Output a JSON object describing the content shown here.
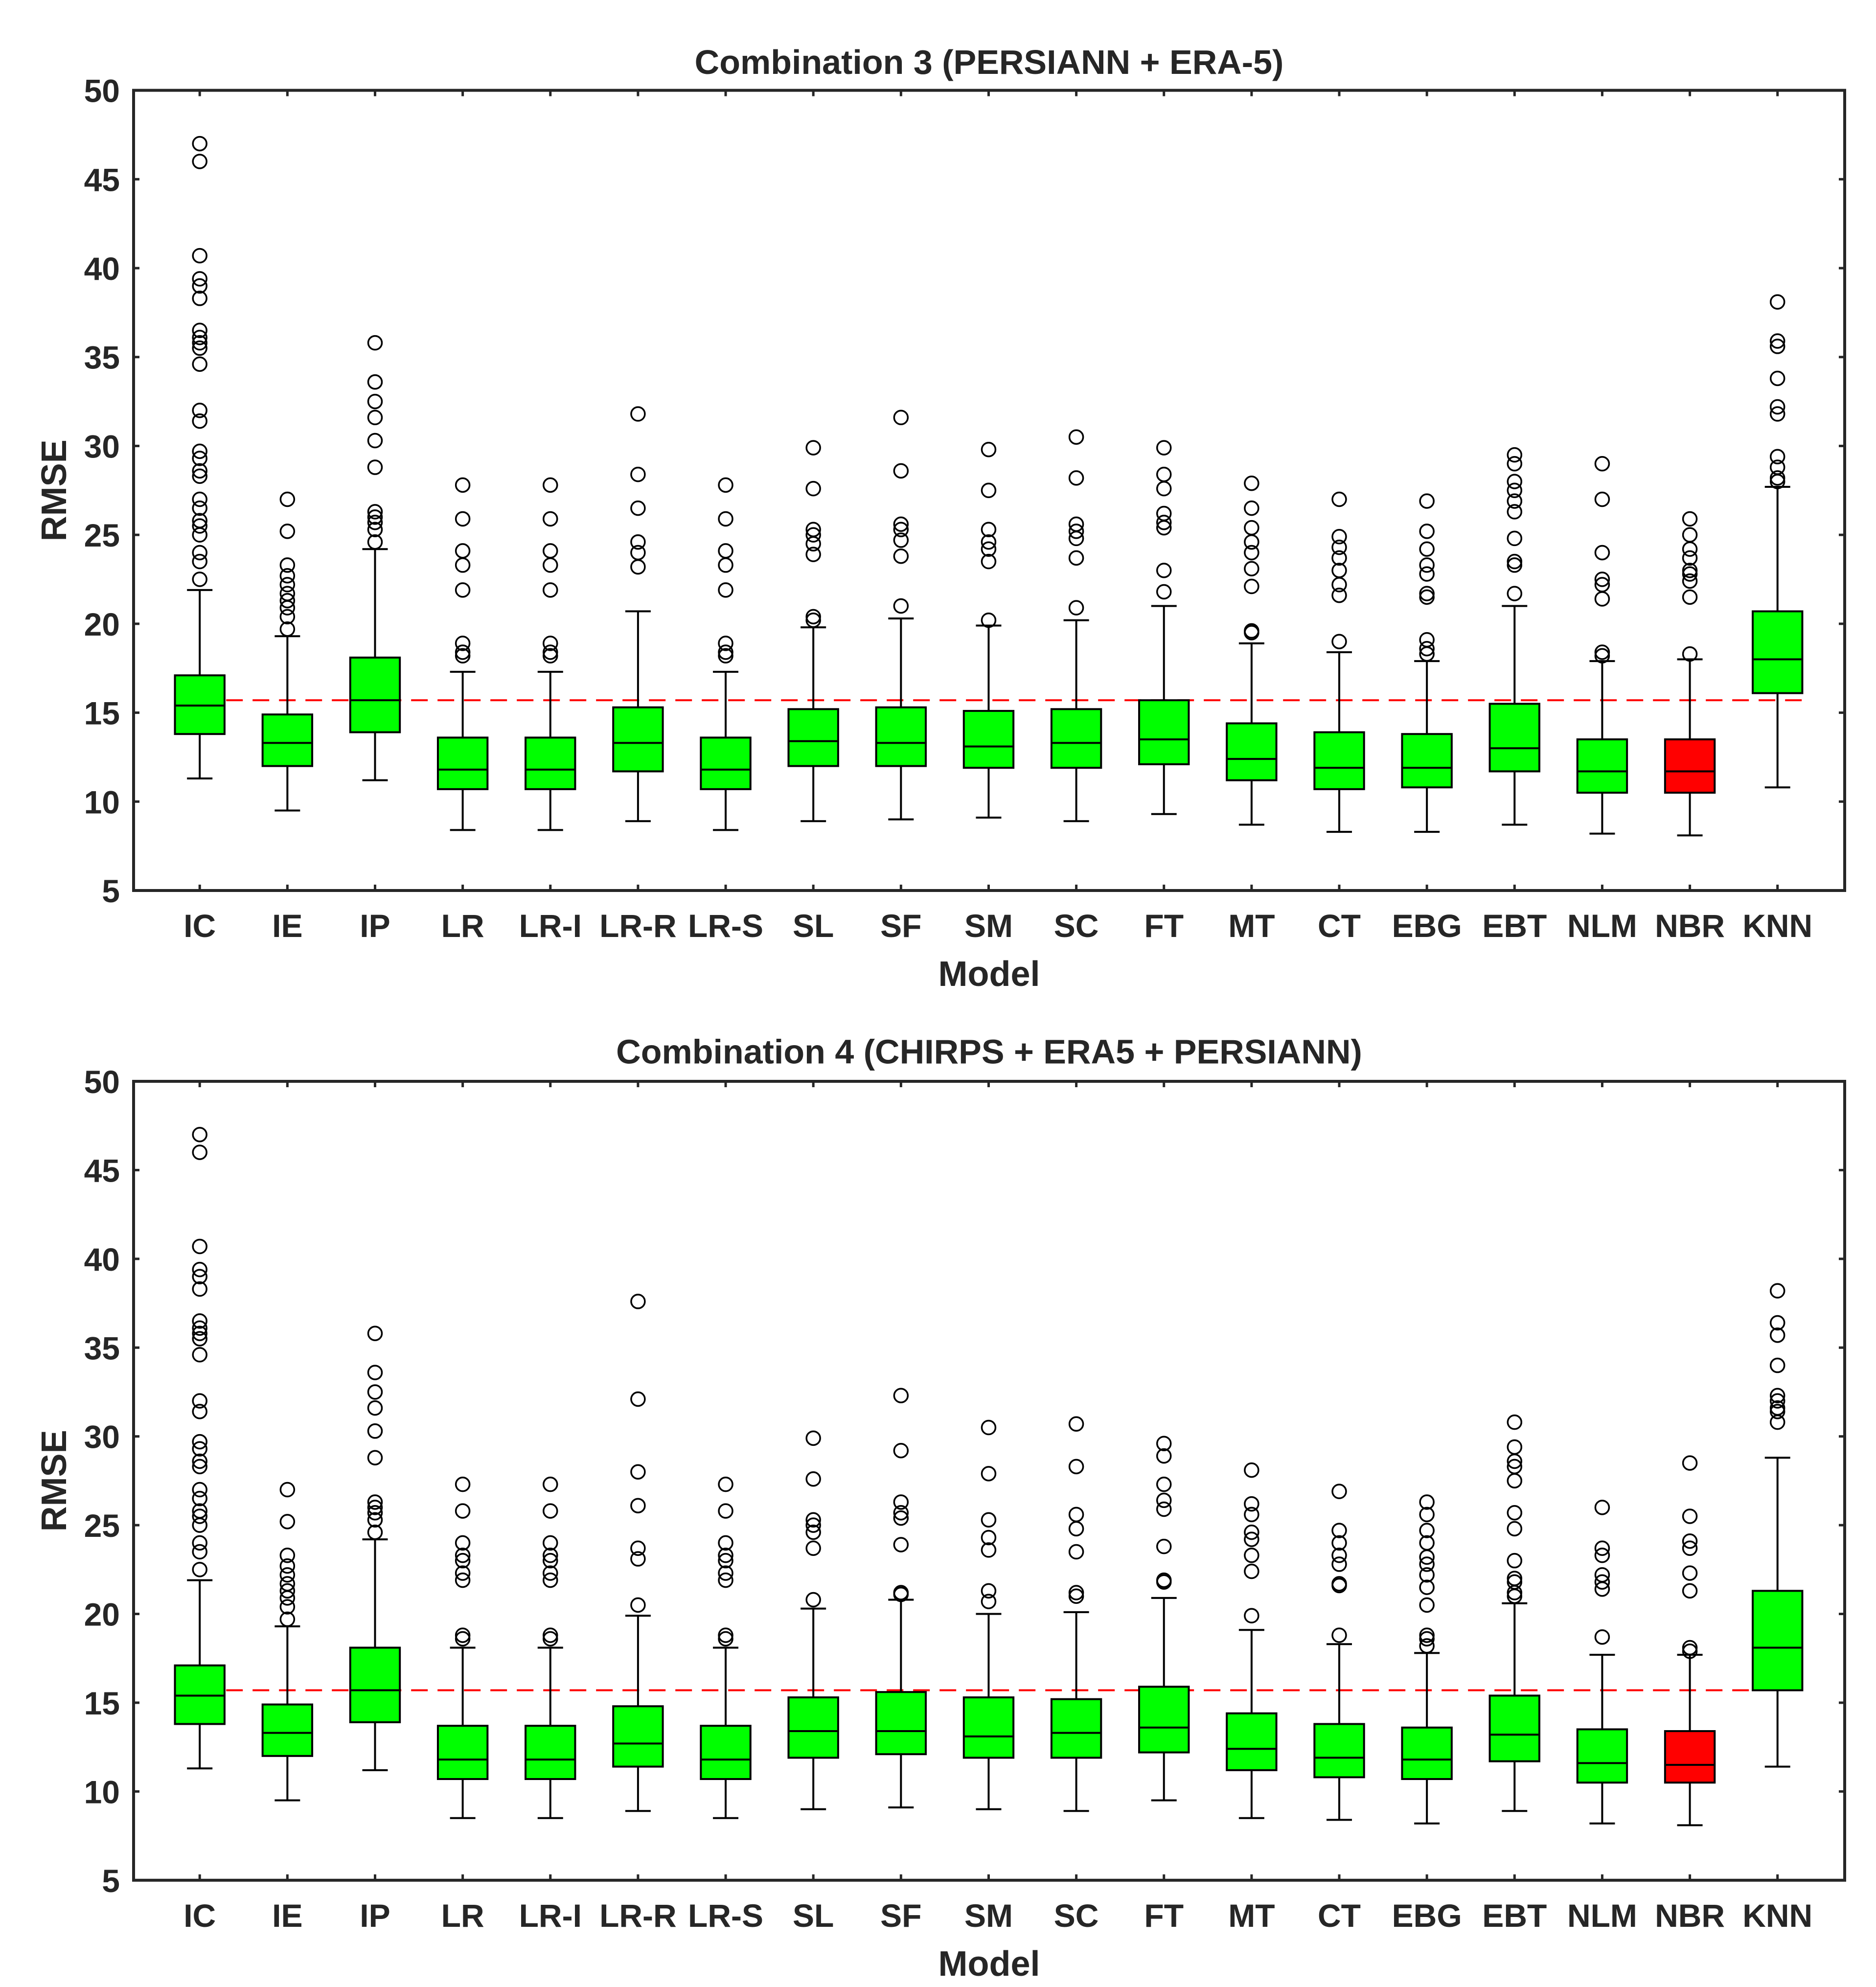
{
  "chart_data": [
    {
      "type": "boxplot",
      "title": "Combination 3 (PERSIANN + ERA-5)",
      "xlabel": "Model",
      "ylabel": "RMSE",
      "ylim": [
        5,
        50
      ],
      "yticks": [
        5,
        10,
        15,
        20,
        25,
        30,
        35,
        40,
        45,
        50
      ],
      "reference_line": 15.7,
      "categories": [
        "IC",
        "IE",
        "IP",
        "LR",
        "LR-I",
        "LR-R",
        "LR-S",
        "SL",
        "SF",
        "SM",
        "SC",
        "FT",
        "MT",
        "CT",
        "EBG",
        "EBT",
        "NLM",
        "NBR",
        "KNN"
      ],
      "box_colors": [
        "#00ff00",
        "#00ff00",
        "#00ff00",
        "#00ff00",
        "#00ff00",
        "#00ff00",
        "#00ff00",
        "#00ff00",
        "#00ff00",
        "#00ff00",
        "#00ff00",
        "#00ff00",
        "#00ff00",
        "#00ff00",
        "#00ff00",
        "#00ff00",
        "#00ff00",
        "#ff0000",
        "#00ff00"
      ],
      "boxes": [
        {
          "wlo": 11.3,
          "q1": 13.8,
          "med": 15.4,
          "q3": 17.1,
          "whi": 21.9,
          "outliers": [
            22.5,
            23.5,
            24.0,
            25.0,
            25.5,
            25.8,
            26.5,
            27.0,
            28.3,
            28.6,
            29.3,
            29.7,
            31.4,
            32.0,
            34.6,
            35.5,
            35.8,
            36.1,
            36.5,
            38.3,
            39.0,
            39.4,
            40.7,
            46.0,
            47.0
          ]
        },
        {
          "wlo": 9.5,
          "q1": 12.0,
          "med": 13.3,
          "q3": 14.9,
          "whi": 19.3,
          "outliers": [
            19.7,
            20.4,
            20.9,
            21.3,
            21.7,
            22.2,
            22.7,
            23.3,
            25.2,
            27.0
          ]
        },
        {
          "wlo": 11.2,
          "q1": 13.9,
          "med": 15.7,
          "q3": 18.1,
          "whi": 24.2,
          "outliers": [
            24.6,
            25.3,
            25.7,
            26.0,
            26.3,
            28.8,
            30.3,
            31.6,
            32.5,
            33.6,
            35.8
          ]
        },
        {
          "wlo": 8.4,
          "q1": 10.7,
          "med": 11.8,
          "q3": 13.6,
          "whi": 17.3,
          "outliers": [
            18.2,
            18.4,
            18.9,
            21.9,
            23.3,
            24.1,
            25.9,
            27.8
          ]
        },
        {
          "wlo": 8.4,
          "q1": 10.7,
          "med": 11.8,
          "q3": 13.6,
          "whi": 17.3,
          "outliers": [
            18.2,
            18.4,
            18.9,
            21.9,
            23.3,
            24.1,
            25.9,
            27.8
          ]
        },
        {
          "wlo": 8.9,
          "q1": 11.7,
          "med": 13.3,
          "q3": 15.3,
          "whi": 20.7,
          "outliers": [
            23.2,
            24.0,
            24.6,
            26.5,
            28.4,
            31.8
          ]
        },
        {
          "wlo": 8.4,
          "q1": 10.7,
          "med": 11.8,
          "q3": 13.6,
          "whi": 17.3,
          "outliers": [
            18.2,
            18.4,
            18.9,
            21.9,
            23.3,
            24.1,
            25.9,
            27.8
          ]
        },
        {
          "wlo": 8.9,
          "q1": 12.0,
          "med": 13.4,
          "q3": 15.2,
          "whi": 19.8,
          "outliers": [
            20.2,
            20.4,
            23.9,
            24.5,
            25.0,
            25.3,
            27.6,
            29.9
          ]
        },
        {
          "wlo": 9.0,
          "q1": 12.0,
          "med": 13.3,
          "q3": 15.3,
          "whi": 20.3,
          "outliers": [
            21.0,
            23.8,
            24.7,
            25.3,
            25.6,
            28.6,
            31.6
          ]
        },
        {
          "wlo": 9.1,
          "q1": 11.9,
          "med": 13.1,
          "q3": 15.1,
          "whi": 19.9,
          "outliers": [
            20.2,
            23.5,
            24.2,
            24.6,
            25.3,
            27.5,
            29.8
          ]
        },
        {
          "wlo": 8.9,
          "q1": 11.9,
          "med": 13.3,
          "q3": 15.2,
          "whi": 20.2,
          "outliers": [
            20.9,
            23.7,
            24.8,
            25.2,
            25.6,
            28.2,
            30.5
          ]
        },
        {
          "wlo": 9.3,
          "q1": 12.1,
          "med": 13.5,
          "q3": 15.7,
          "whi": 21.0,
          "outliers": [
            21.8,
            23.0,
            25.4,
            25.7,
            26.2,
            27.6,
            28.4,
            29.9
          ]
        },
        {
          "wlo": 8.7,
          "q1": 11.2,
          "med": 12.4,
          "q3": 14.4,
          "whi": 18.9,
          "outliers": [
            19.5,
            19.6,
            22.1,
            23.1,
            24.0,
            24.6,
            25.4,
            26.5,
            27.9
          ]
        },
        {
          "wlo": 8.3,
          "q1": 10.7,
          "med": 11.9,
          "q3": 13.9,
          "whi": 18.4,
          "outliers": [
            19.0,
            21.6,
            22.2,
            23.0,
            23.7,
            24.3,
            24.9,
            27.0
          ]
        },
        {
          "wlo": 8.3,
          "q1": 10.8,
          "med": 11.9,
          "q3": 13.8,
          "whi": 17.9,
          "outliers": [
            18.3,
            18.6,
            19.1,
            21.5,
            21.7,
            22.8,
            23.3,
            24.2,
            25.2,
            26.9
          ]
        },
        {
          "wlo": 8.7,
          "q1": 11.7,
          "med": 13.0,
          "q3": 15.5,
          "whi": 21.0,
          "outliers": [
            21.7,
            23.3,
            23.5,
            24.8,
            26.3,
            26.9,
            27.5,
            28.0,
            29.0,
            29.5
          ]
        },
        {
          "wlo": 8.2,
          "q1": 10.5,
          "med": 11.7,
          "q3": 13.5,
          "whi": 17.9,
          "outliers": [
            18.2,
            18.4,
            21.4,
            22.2,
            22.5,
            24.0,
            27.0,
            29.0
          ]
        },
        {
          "wlo": 8.1,
          "q1": 10.5,
          "med": 11.7,
          "q3": 13.5,
          "whi": 18.0,
          "outliers": [
            18.3,
            21.5,
            22.4,
            22.8,
            23.0,
            23.7,
            24.2,
            25.0,
            25.9
          ]
        },
        {
          "wlo": 10.8,
          "q1": 16.1,
          "med": 18.0,
          "q3": 20.7,
          "whi": 27.7,
          "outliers": [
            28.0,
            28.2,
            28.8,
            29.4,
            31.8,
            32.2,
            33.8,
            35.6,
            35.9,
            38.1
          ]
        }
      ]
    },
    {
      "type": "boxplot",
      "title": "Combination 4 (CHIRPS + ERA5 + PERSIANN)",
      "xlabel": "Model",
      "ylabel": "RMSE",
      "ylim": [
        5,
        50
      ],
      "yticks": [
        5,
        10,
        15,
        20,
        25,
        30,
        35,
        40,
        45,
        50
      ],
      "reference_line": 15.7,
      "categories": [
        "IC",
        "IE",
        "IP",
        "LR",
        "LR-I",
        "LR-R",
        "LR-S",
        "SL",
        "SF",
        "SM",
        "SC",
        "FT",
        "MT",
        "CT",
        "EBG",
        "EBT",
        "NLM",
        "NBR",
        "KNN"
      ],
      "box_colors": [
        "#00ff00",
        "#00ff00",
        "#00ff00",
        "#00ff00",
        "#00ff00",
        "#00ff00",
        "#00ff00",
        "#00ff00",
        "#00ff00",
        "#00ff00",
        "#00ff00",
        "#00ff00",
        "#00ff00",
        "#00ff00",
        "#00ff00",
        "#00ff00",
        "#00ff00",
        "#ff0000",
        "#00ff00"
      ],
      "boxes": [
        {
          "wlo": 11.3,
          "q1": 13.8,
          "med": 15.4,
          "q3": 17.1,
          "whi": 21.9,
          "outliers": [
            22.5,
            23.5,
            24.0,
            25.0,
            25.5,
            25.8,
            26.5,
            27.0,
            28.3,
            28.6,
            29.3,
            29.7,
            31.4,
            32.0,
            34.6,
            35.5,
            35.8,
            36.1,
            36.5,
            38.3,
            39.0,
            39.4,
            40.7,
            46.0,
            47.0
          ]
        },
        {
          "wlo": 9.5,
          "q1": 12.0,
          "med": 13.3,
          "q3": 14.9,
          "whi": 19.3,
          "outliers": [
            19.7,
            20.4,
            20.9,
            21.3,
            21.7,
            22.2,
            22.7,
            23.3,
            25.2,
            27.0
          ]
        },
        {
          "wlo": 11.2,
          "q1": 13.9,
          "med": 15.7,
          "q3": 18.1,
          "whi": 24.2,
          "outliers": [
            24.6,
            25.3,
            25.7,
            26.0,
            26.3,
            28.8,
            30.3,
            31.6,
            32.5,
            33.6,
            35.8
          ]
        },
        {
          "wlo": 8.5,
          "q1": 10.7,
          "med": 11.8,
          "q3": 13.7,
          "whi": 18.1,
          "outliers": [
            18.6,
            18.8,
            21.9,
            22.3,
            23.0,
            23.3,
            24.0,
            25.8,
            27.3
          ]
        },
        {
          "wlo": 8.5,
          "q1": 10.7,
          "med": 11.8,
          "q3": 13.7,
          "whi": 18.1,
          "outliers": [
            18.6,
            18.8,
            21.9,
            22.3,
            23.0,
            23.3,
            24.0,
            25.8,
            27.3
          ]
        },
        {
          "wlo": 8.9,
          "q1": 11.4,
          "med": 12.7,
          "q3": 14.8,
          "whi": 19.9,
          "outliers": [
            20.5,
            23.1,
            23.7,
            26.1,
            28.0,
            32.1,
            37.6
          ]
        },
        {
          "wlo": 8.5,
          "q1": 10.7,
          "med": 11.8,
          "q3": 13.7,
          "whi": 18.1,
          "outliers": [
            18.6,
            18.8,
            21.9,
            22.3,
            23.0,
            23.3,
            24.0,
            25.8,
            27.3
          ]
        },
        {
          "wlo": 9.0,
          "q1": 11.9,
          "med": 13.4,
          "q3": 15.3,
          "whi": 20.3,
          "outliers": [
            20.8,
            23.7,
            24.6,
            25.0,
            25.3,
            27.6,
            29.9
          ]
        },
        {
          "wlo": 9.1,
          "q1": 12.1,
          "med": 13.4,
          "q3": 15.6,
          "whi": 20.8,
          "outliers": [
            21.1,
            21.2,
            23.9,
            25.4,
            25.7,
            26.3,
            29.2,
            32.3
          ]
        },
        {
          "wlo": 9.0,
          "q1": 11.9,
          "med": 13.1,
          "q3": 15.3,
          "whi": 20.0,
          "outliers": [
            20.7,
            21.3,
            23.6,
            24.3,
            25.3,
            27.9,
            30.5
          ]
        },
        {
          "wlo": 8.9,
          "q1": 11.9,
          "med": 13.3,
          "q3": 15.2,
          "whi": 20.1,
          "outliers": [
            21.0,
            21.2,
            23.5,
            24.8,
            25.6,
            28.3,
            30.7
          ]
        },
        {
          "wlo": 9.5,
          "q1": 12.2,
          "med": 13.6,
          "q3": 15.9,
          "whi": 20.9,
          "outliers": [
            21.8,
            21.9,
            23.8,
            25.9,
            26.4,
            27.3,
            28.9,
            29.6
          ]
        },
        {
          "wlo": 8.5,
          "q1": 11.2,
          "med": 12.4,
          "q3": 14.4,
          "whi": 19.1,
          "outliers": [
            19.9,
            22.4,
            23.3,
            24.2,
            24.6,
            25.6,
            26.2,
            28.1
          ]
        },
        {
          "wlo": 8.4,
          "q1": 10.8,
          "med": 11.9,
          "q3": 13.8,
          "whi": 18.3,
          "outliers": [
            18.8,
            21.6,
            21.7,
            22.8,
            23.3,
            24.0,
            24.7,
            26.9
          ]
        },
        {
          "wlo": 8.2,
          "q1": 10.7,
          "med": 11.8,
          "q3": 13.6,
          "whi": 17.8,
          "outliers": [
            18.2,
            18.6,
            18.8,
            20.5,
            21.5,
            22.2,
            22.8,
            23.2,
            24.0,
            24.7,
            25.6,
            26.3
          ]
        },
        {
          "wlo": 8.9,
          "q1": 11.7,
          "med": 13.2,
          "q3": 15.4,
          "whi": 20.6,
          "outliers": [
            21.0,
            21.2,
            21.8,
            22.0,
            23.0,
            24.8,
            25.7,
            27.5,
            28.3,
            28.6,
            29.4,
            30.8
          ]
        },
        {
          "wlo": 8.2,
          "q1": 10.5,
          "med": 11.6,
          "q3": 13.5,
          "whi": 17.7,
          "outliers": [
            18.7,
            21.4,
            21.8,
            22.2,
            23.3,
            23.7,
            26.0
          ]
        },
        {
          "wlo": 8.1,
          "q1": 10.5,
          "med": 11.5,
          "q3": 13.4,
          "whi": 17.7,
          "outliers": [
            17.9,
            18.1,
            21.3,
            22.3,
            23.7,
            24.1,
            25.5,
            28.5
          ]
        },
        {
          "wlo": 11.4,
          "q1": 15.7,
          "med": 18.1,
          "q3": 21.3,
          "whi": 28.8,
          "outliers": [
            30.8,
            31.4,
            31.6,
            32.0,
            32.3,
            34.0,
            35.7,
            36.4,
            38.2
          ]
        }
      ]
    }
  ]
}
